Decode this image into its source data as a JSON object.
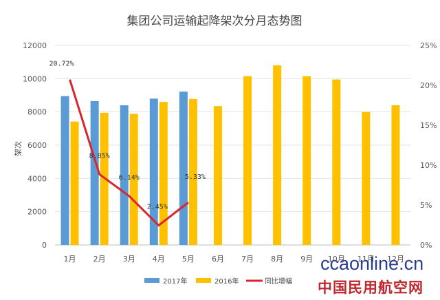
{
  "chart_data": {
    "type": "bar",
    "title": "集团公司运输起降架次分月态势图",
    "ylabel": "架次",
    "ylim": [
      0,
      12000
    ],
    "y_ticks": [
      "0",
      "2000",
      "4000",
      "6000",
      "8000",
      "10000",
      "12000"
    ],
    "y2lim": [
      0,
      25
    ],
    "y2_ticks": [
      "0%",
      "5%",
      "10%",
      "15%",
      "20%",
      "25%"
    ],
    "categories": [
      "1月",
      "2月",
      "3月",
      "4月",
      "5月",
      "6月",
      "7月",
      "8月",
      "9月",
      "10月",
      "11月",
      "12月"
    ],
    "series": [
      {
        "name": "2017年",
        "type": "bar",
        "color": "#5b9bd5",
        "values": [
          8950,
          8650,
          8400,
          8800,
          9220,
          null,
          null,
          null,
          null,
          null,
          null,
          null
        ]
      },
      {
        "name": "2016年",
        "type": "bar",
        "color": "#ffc000",
        "values": [
          7420,
          7950,
          7880,
          8600,
          8780,
          8350,
          10150,
          10800,
          10150,
          9950,
          8000,
          8400
        ]
      },
      {
        "name": "同比增幅",
        "type": "line",
        "axis": "right",
        "color": "#d9262e",
        "values": [
          20.72,
          8.85,
          6.14,
          2.45,
          5.33,
          null,
          null,
          null,
          null,
          null,
          null,
          null
        ],
        "labels": [
          "20.72%",
          "8.85%",
          "6.14%",
          "2.45%",
          "5.33%"
        ]
      }
    ],
    "legend_position": "bottom"
  },
  "watermark": {
    "domain_text": "ccaonline.cn",
    "name_text": "中国民用航空网"
  }
}
